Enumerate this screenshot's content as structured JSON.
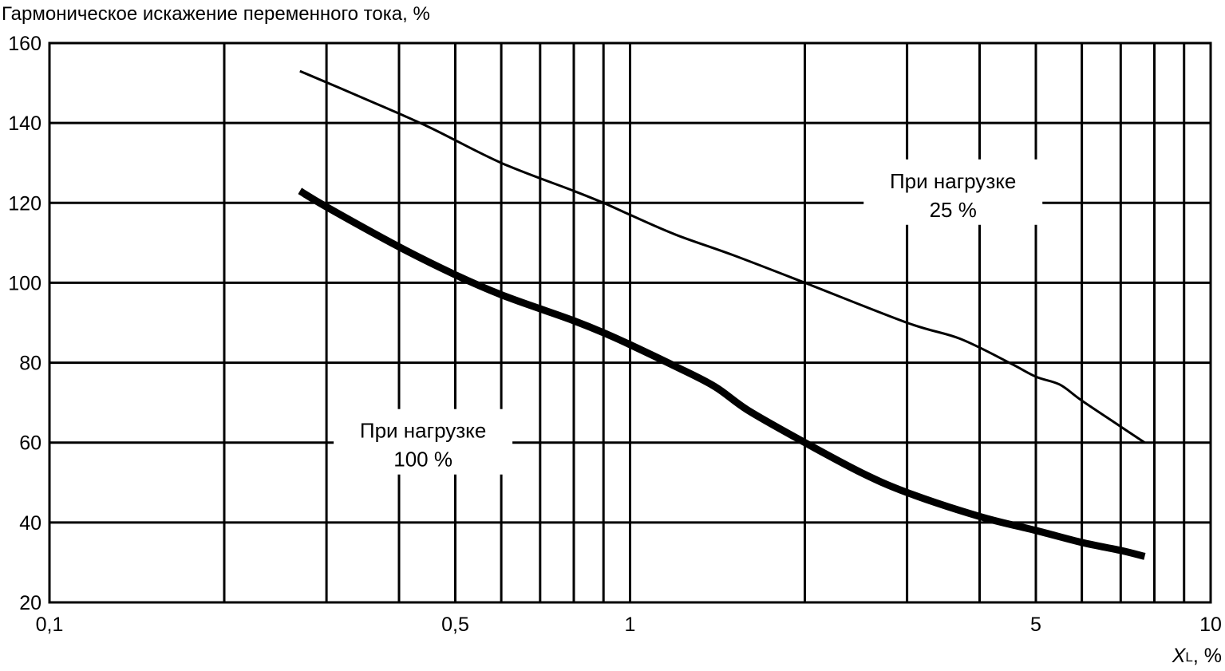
{
  "chart_data": {
    "type": "line",
    "ylabel": "Гармоническое искажение переменного тока, %",
    "xlabel": {
      "symbol": "X",
      "subscript": "L",
      "unit": ", %"
    },
    "x_scale": "log",
    "xlim": [
      0.1,
      10
    ],
    "ylim": [
      20,
      160
    ],
    "grid": true,
    "x_tick_labels": [
      {
        "value": 0.1,
        "label": "0,1"
      },
      {
        "value": 0.5,
        "label": "0,5"
      },
      {
        "value": 1,
        "label": "1"
      },
      {
        "value": 5,
        "label": "5"
      },
      {
        "value": 10,
        "label": "10"
      }
    ],
    "y_ticks": [
      20,
      40,
      60,
      80,
      100,
      120,
      140,
      160
    ],
    "x_gridlines": [
      0.2,
      0.3,
      0.4,
      0.5,
      0.6,
      0.7,
      0.8,
      0.9,
      1,
      2,
      3,
      4,
      5,
      6,
      7,
      8,
      9
    ],
    "series": [
      {
        "name": "При нагрузке 25 %",
        "label_lines": [
          "При нагрузке",
          "25 %"
        ],
        "label_at": {
          "x": 3.6,
          "y": 122.5
        },
        "x": [
          0.27,
          0.35,
          0.45,
          0.6,
          0.8,
          0.9,
          1.0,
          1.2,
          1.5,
          2.0,
          3.0,
          3.7,
          4.5,
          5.0,
          5.5,
          6.0,
          7.0,
          7.7
        ],
        "y": [
          153,
          146,
          139,
          130,
          123,
          120,
          117,
          112,
          107,
          100,
          90,
          86,
          80,
          76.5,
          74.5,
          70.5,
          64,
          60
        ],
        "stroke_width": 3
      },
      {
        "name": "При нагрузке 100 %",
        "label_lines": [
          "При нагрузке",
          "100 %"
        ],
        "label_at": {
          "x": 0.44,
          "y": 60
        },
        "x": [
          0.27,
          0.3,
          0.4,
          0.5,
          0.6,
          0.7,
          0.8,
          0.9,
          1.0,
          1.2,
          1.4,
          1.6,
          2.0,
          2.5,
          3.0,
          4.0,
          5.0,
          6.0,
          7.0,
          7.7
        ],
        "y": [
          123,
          119,
          109,
          102,
          97,
          93.5,
          90.5,
          87.5,
          84.5,
          79,
          74,
          68,
          60,
          52.5,
          47.5,
          41.5,
          38,
          35,
          33,
          31.5
        ],
        "stroke_width": 9
      }
    ]
  }
}
